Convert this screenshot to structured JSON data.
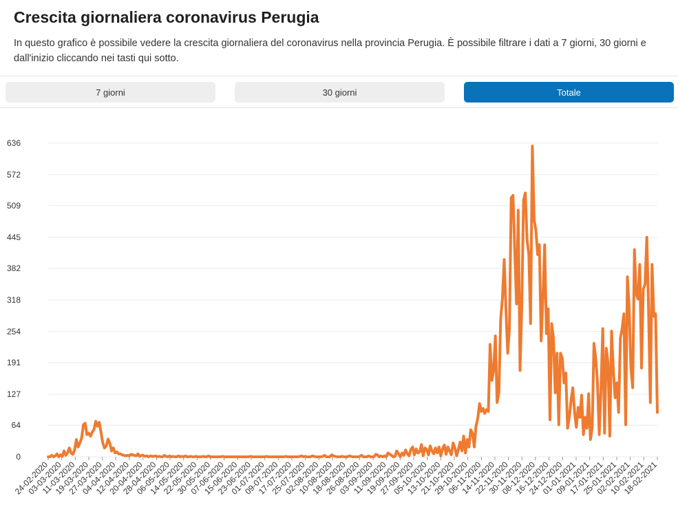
{
  "header": {
    "title": "Crescita giornaliera coronavirus Perugia",
    "description": "In questo grafico è possibile vedere la crescita giornaliera del coronavirus nella provincia Perugia. È possibile filtrare i dati a 7 giorni, 30 giorni e dall'inizio cliccando nei tasti qui sotto."
  },
  "filters": {
    "btn_7": "7 giorni",
    "btn_30": "30 giorni",
    "btn_total": "Totale",
    "selected": "Totale"
  },
  "colors": {
    "line": "#ee7b30",
    "active_button": "#0a72b8",
    "inactive_button": "#eeeeee",
    "grid": "#e8e8e8"
  },
  "chart_data": {
    "type": "line",
    "title": "",
    "xlabel": "",
    "ylabel": "",
    "ylim": [
      0,
      636
    ],
    "yticks": [
      0,
      64,
      127,
      191,
      254,
      318,
      382,
      445,
      509,
      572,
      636
    ],
    "grid": true,
    "x_start": "24-02-2020",
    "x_end": "23-02-2021",
    "xticks": [
      "24-02-2020",
      "03-03-2020",
      "11-03-2020",
      "19-03-2020",
      "27-03-2020",
      "04-04-2020",
      "12-04-2020",
      "20-04-2020",
      "28-04-2020",
      "06-05-2020",
      "14-05-2020",
      "22-05-2020",
      "30-05-2020",
      "07-06-2020",
      "15-06-2020",
      "23-06-2020",
      "01-07-2020",
      "09-07-2020",
      "17-07-2020",
      "25-07-2020",
      "02-08-2020",
      "10-08-2020",
      "18-08-2020",
      "26-08-2020",
      "03-09-2020",
      "11-09-2020",
      "19-09-2020",
      "27-09-2020",
      "05-10-2020",
      "13-10-2020",
      "21-10-2020",
      "29-10-2020",
      "06-11-2020",
      "14-11-2020",
      "22-11-2020",
      "30-11-2020",
      "08-12-2020",
      "16-12-2020",
      "24-12-2020",
      "01-01-2021",
      "09-01-2021",
      "17-01-2021",
      "25-01-2021",
      "02-02-2021",
      "10-02-2021",
      "18-02-2021"
    ],
    "series": [
      {
        "name": "Crescita giornaliera",
        "values": [
          0,
          0,
          3,
          0,
          2,
          6,
          0,
          4,
          1,
          12,
          3,
          8,
          18,
          8,
          5,
          14,
          35,
          20,
          28,
          38,
          65,
          68,
          45,
          48,
          42,
          50,
          55,
          72,
          62,
          70,
          50,
          28,
          18,
          22,
          36,
          28,
          12,
          18,
          8,
          10,
          6,
          6,
          4,
          3,
          2,
          3,
          2,
          5,
          4,
          3,
          2,
          6,
          1,
          3,
          3,
          1,
          2,
          0,
          2,
          1,
          1,
          2,
          0,
          1,
          0,
          0,
          3,
          1,
          0,
          2,
          0,
          1,
          0,
          0,
          2,
          0,
          1,
          0,
          2,
          0,
          0,
          1,
          0,
          0,
          1,
          0,
          0,
          0,
          1,
          0,
          0,
          2,
          0,
          0,
          0,
          0,
          0,
          0,
          0,
          1,
          0,
          0,
          0,
          0,
          0,
          0,
          0,
          0,
          0,
          0,
          0,
          0,
          0,
          0,
          0,
          1,
          0,
          0,
          0,
          0,
          0,
          0,
          0,
          0,
          1,
          0,
          0,
          0,
          0,
          0,
          0,
          0,
          0,
          0,
          0,
          1,
          0,
          0,
          0,
          0,
          0,
          0,
          0,
          1,
          2,
          0,
          1,
          0,
          0,
          0,
          2,
          1,
          0,
          0,
          0,
          0,
          1,
          3,
          0,
          0,
          0,
          4,
          2,
          1,
          0,
          0,
          0,
          1,
          0,
          0,
          0,
          2,
          1,
          0,
          0,
          0,
          0,
          1,
          3,
          0,
          0,
          0,
          2,
          0,
          0,
          0,
          5,
          4,
          0,
          2,
          0,
          2,
          0,
          8,
          5,
          3,
          0,
          1,
          12,
          6,
          0,
          8,
          3,
          14,
          6,
          2,
          15,
          20,
          4,
          16,
          8,
          10,
          25,
          2,
          18,
          15,
          4,
          22,
          12,
          6,
          18,
          8,
          20,
          2,
          16,
          24,
          5,
          20,
          12,
          4,
          28,
          18,
          2,
          15,
          30,
          12,
          42,
          8,
          35,
          20,
          55,
          48,
          20,
          62,
          78,
          108,
          92,
          98,
          88,
          96,
          92,
          228,
          155,
          175,
          245,
          110,
          130,
          280,
          320,
          400,
          300,
          210,
          260,
          525,
          530,
          420,
          310,
          500,
          175,
          300,
          520,
          535,
          440,
          410,
          270,
          630,
          480,
          460,
          410,
          430,
          235,
          320,
          430,
          250,
          300,
          75,
          270,
          240,
          130,
          210,
          65,
          210,
          200,
          150,
          170,
          58,
          80,
          115,
          140,
          90,
          60,
          100,
          80,
          125,
          45,
          80,
          58,
          128,
          35,
          60,
          230,
          200,
          150,
          45,
          140,
          260,
          48,
          220,
          190,
          42,
          255,
          175,
          120,
          150,
          90,
          240,
          260,
          290,
          65,
          365,
          300,
          180,
          140,
          420,
          330,
          320,
          390,
          180,
          340,
          350,
          445,
          300,
          110,
          390,
          285,
          290,
          90
        ]
      }
    ]
  }
}
